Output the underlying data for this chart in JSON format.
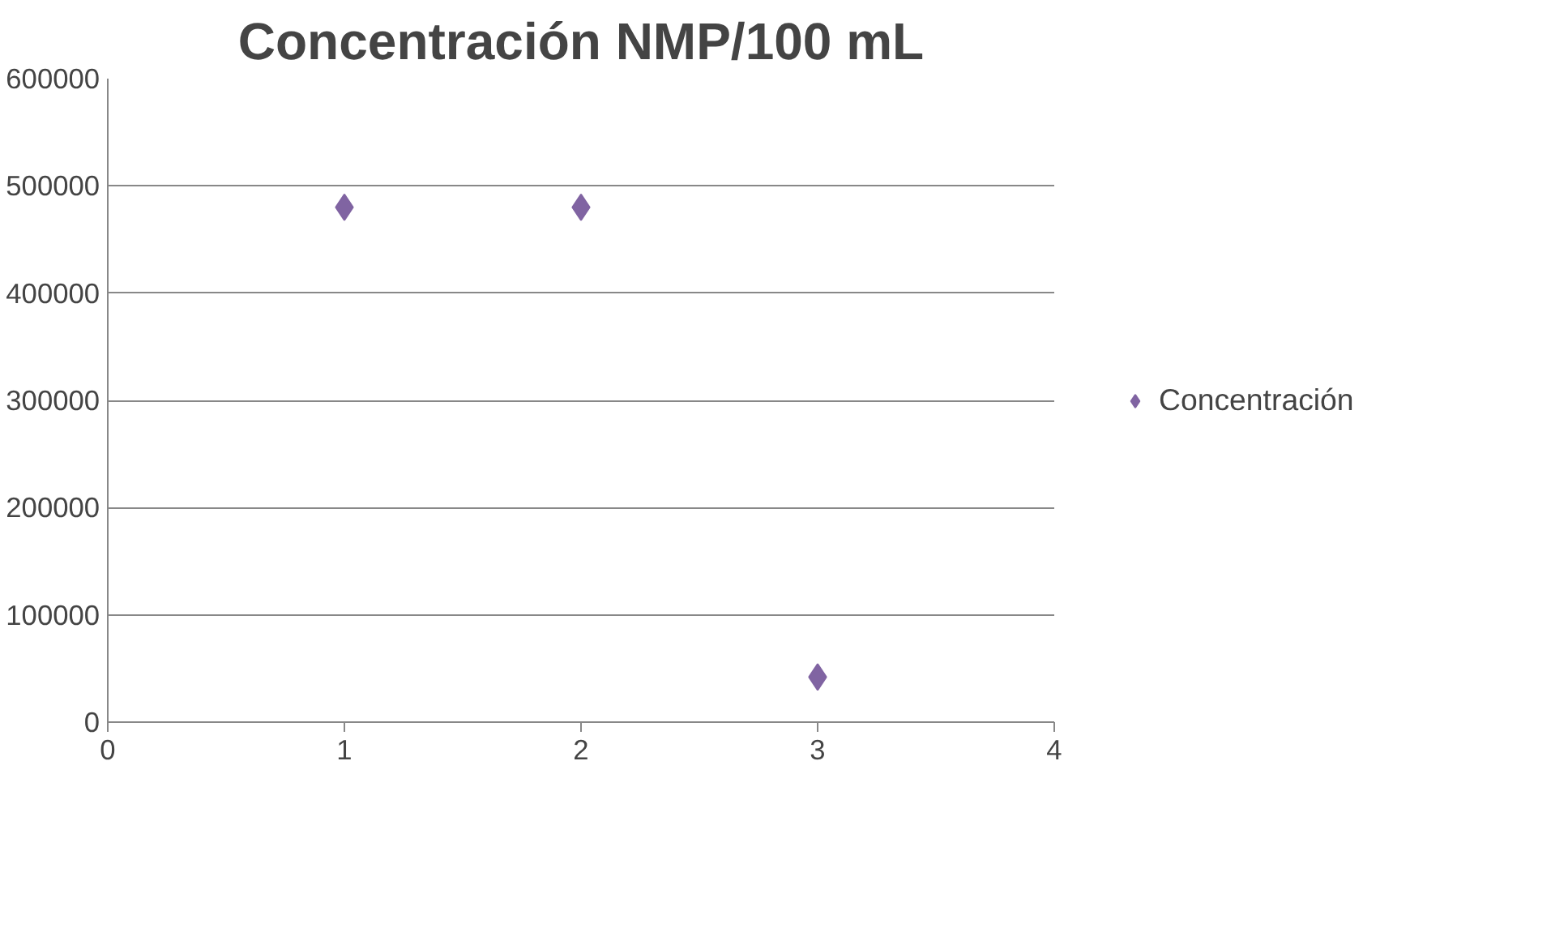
{
  "chart_data": {
    "type": "scatter",
    "title": "Concentración NMP/100 mL",
    "x": [
      1,
      2,
      3
    ],
    "series": [
      {
        "name": "Concentración",
        "color": "#8064a2",
        "values": [
          480000,
          480000,
          42000
        ]
      }
    ],
    "xlim": [
      0,
      4
    ],
    "xticks": [
      0,
      1,
      2,
      3,
      4
    ],
    "ylim": [
      0,
      600000
    ],
    "yticks": [
      0,
      100000,
      200000,
      300000,
      400000,
      500000,
      600000
    ],
    "grid": "y",
    "legend": "right",
    "marker": "diamond"
  }
}
